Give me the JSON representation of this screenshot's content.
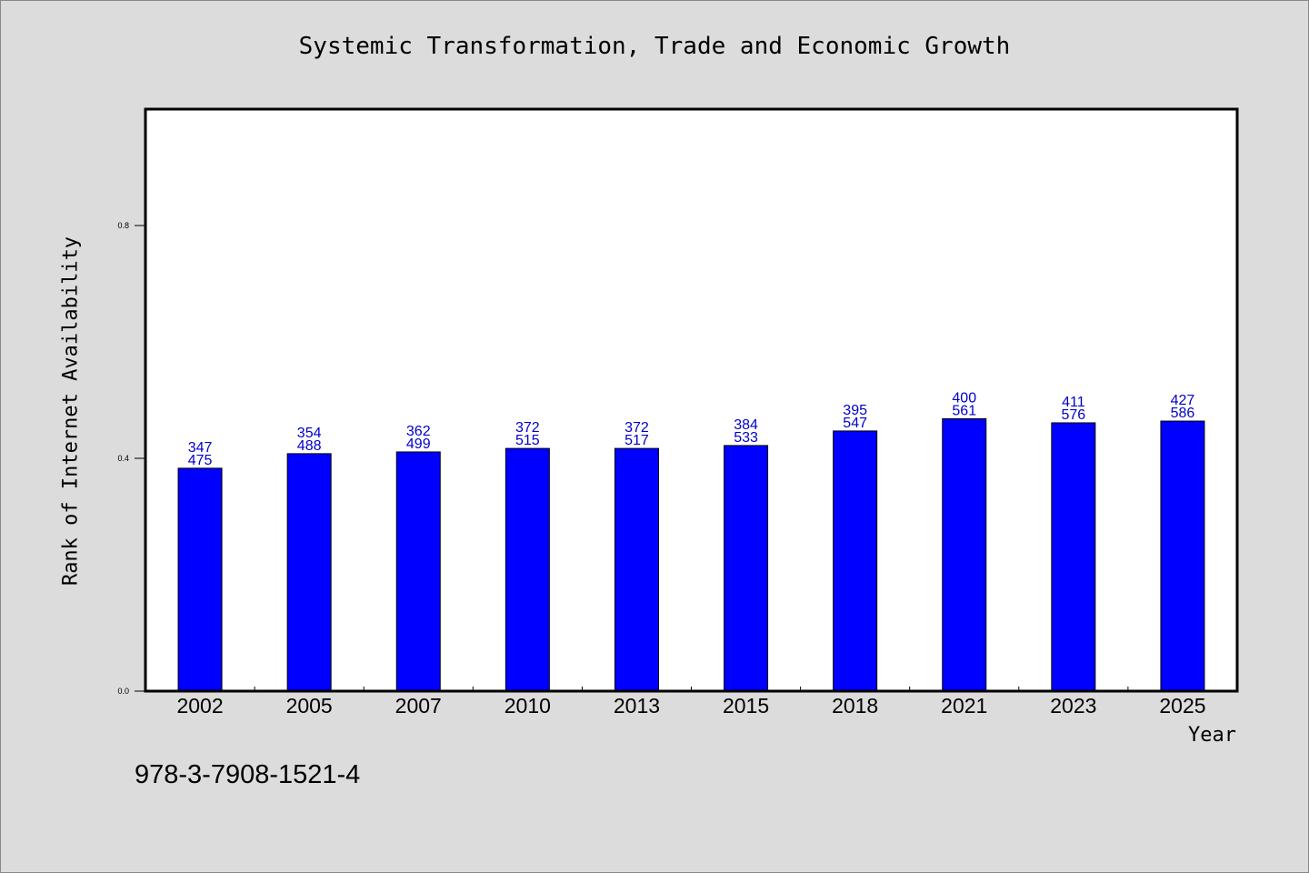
{
  "chart_data": {
    "type": "bar",
    "title": "Systemic Transformation, Trade and Economic Growth",
    "xlabel": "Year",
    "ylabel": "Rank of Internet Availability",
    "categories": [
      "2002",
      "2005",
      "2007",
      "2010",
      "2013",
      "2015",
      "2018",
      "2021",
      "2023",
      "2025"
    ],
    "values": [
      0.383,
      0.408,
      0.411,
      0.417,
      0.417,
      0.422,
      0.447,
      0.468,
      0.461,
      0.464
    ],
    "annotations_top": [
      "347",
      "354",
      "362",
      "372",
      "372",
      "384",
      "395",
      "400",
      "411",
      "427"
    ],
    "annotations_bottom": [
      "475",
      "488",
      "499",
      "515",
      "517",
      "533",
      "547",
      "561",
      "576",
      "586"
    ],
    "ylim": [
      0,
      1.0
    ],
    "yticks": [
      0.0,
      0.4,
      0.8
    ],
    "ytick_labels": [
      "0.0",
      "0.4",
      "0.8"
    ],
    "grid": false,
    "legend": "none",
    "bar_color": "#0000ff",
    "label_color": "#0000cc"
  },
  "footer": {
    "isbn": "978-3-7908-1521-4"
  }
}
